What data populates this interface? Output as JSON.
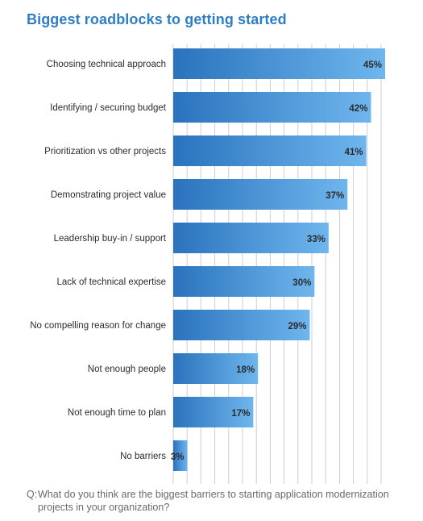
{
  "title": "Biggest roadblocks to getting started",
  "question": {
    "prefix": "Q:",
    "text": "What do you think are the biggest barriers to starting application modernization projects in your organization?"
  },
  "colors": {
    "title": "#2f7ec1",
    "bar_dark": "#2a73bd",
    "bar_light": "#6fb6ee",
    "grid": "#c9ced6",
    "label": "#2b2b2b",
    "value": "#2b2b2b"
  },
  "chart_data": {
    "type": "bar",
    "orientation": "horizontal",
    "title": "Biggest roadblocks to getting started",
    "categories": [
      "Choosing technical approach",
      "Identifying / securing budget",
      "Prioritization vs other projects",
      "Demonstrating project value",
      "Leadership buy-in / support",
      "Lack of technical expertise",
      "No compelling reason for change",
      "Not enough people",
      "Not enough time to plan",
      "No barriers"
    ],
    "values": [
      45,
      42,
      41,
      37,
      33,
      30,
      29,
      18,
      17,
      3
    ],
    "value_labels": [
      "45%",
      "42%",
      "41%",
      "37%",
      "33%",
      "30%",
      "29%",
      "18%",
      "17%",
      "3%"
    ],
    "xlim": [
      0,
      45
    ],
    "grid": true,
    "legend": false
  }
}
